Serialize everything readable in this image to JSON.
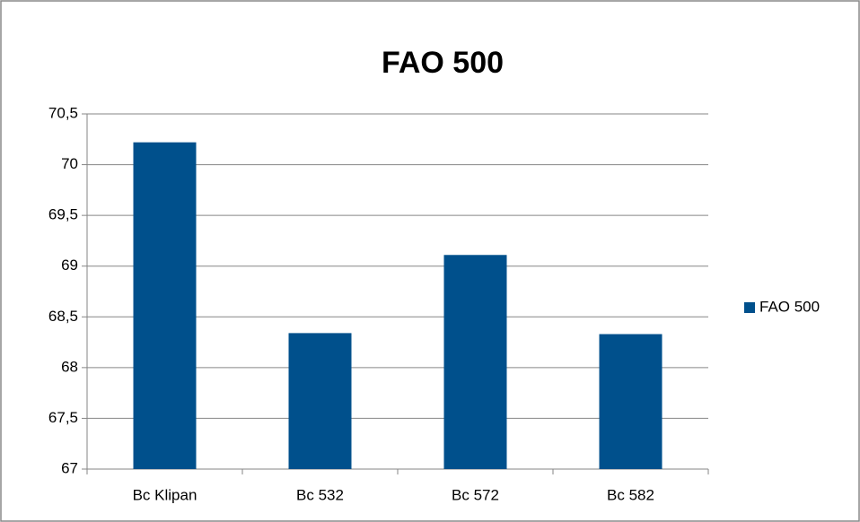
{
  "chart_data": {
    "type": "bar",
    "title": "FAO 500",
    "categories": [
      "Bc Klipan",
      "Bc 532",
      "Bc 572",
      "Bc 582"
    ],
    "series": [
      {
        "name": "FAO 500",
        "color": "#00508c",
        "values": [
          70.22,
          68.34,
          69.11,
          68.33
        ]
      }
    ],
    "ylim": [
      67,
      70.5
    ],
    "yticks": [
      67,
      {
        "value": 67.5,
        "label": "67,5"
      },
      68,
      {
        "value": 68.5,
        "label": "68,5"
      },
      69,
      {
        "value": 69.5,
        "label": "69,5"
      },
      70,
      {
        "value": 70.5,
        "label": "70,5"
      }
    ],
    "grid": true,
    "legend": "right"
  }
}
